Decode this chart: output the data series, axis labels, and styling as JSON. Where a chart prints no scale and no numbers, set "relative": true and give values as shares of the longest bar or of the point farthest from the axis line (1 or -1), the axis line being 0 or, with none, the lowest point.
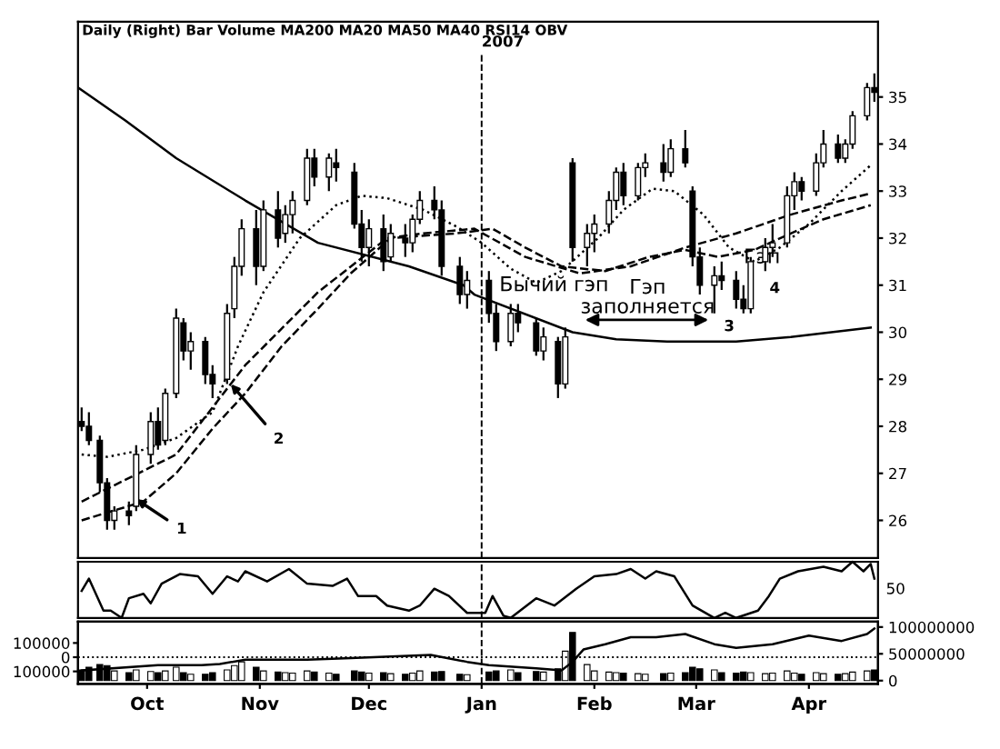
{
  "chart_data": [
    {
      "type": "candlestick",
      "title": "Daily (Right) Bar Volume MA200 MA20 MA50 MA40 RSI14 OBV",
      "x": [
        "2006-09-13",
        "2006-09-15",
        "2006-09-18",
        "2006-09-20",
        "2006-09-22",
        "2006-09-26",
        "2006-09-28",
        "2006-10-02",
        "2006-10-04",
        "2006-10-06",
        "2006-10-09",
        "2006-10-11",
        "2006-10-13",
        "2006-10-17",
        "2006-10-19",
        "2006-10-23",
        "2006-10-25",
        "2006-10-27",
        "2006-10-31",
        "2006-11-02",
        "2006-11-06",
        "2006-11-08",
        "2006-11-10",
        "2006-11-14",
        "2006-11-16",
        "2006-11-20",
        "2006-11-22",
        "2006-11-27",
        "2006-11-29",
        "2006-12-01",
        "2006-12-05",
        "2006-12-07",
        "2006-12-11",
        "2006-12-13",
        "2006-12-15",
        "2006-12-19",
        "2006-12-21",
        "2006-12-26",
        "2006-12-28",
        "2007-01-03",
        "2007-01-05",
        "2007-01-09",
        "2007-01-11",
        "2007-01-16",
        "2007-01-18",
        "2007-01-22",
        "2007-01-24",
        "2007-01-26",
        "2007-01-30",
        "2007-02-01",
        "2007-02-05",
        "2007-02-07",
        "2007-02-09",
        "2007-02-13",
        "2007-02-15",
        "2007-02-20",
        "2007-02-22",
        "2007-02-26",
        "2007-02-28",
        "2007-03-02",
        "2007-03-06",
        "2007-03-08",
        "2007-03-12",
        "2007-03-14",
        "2007-03-16",
        "2007-03-20",
        "2007-03-22",
        "2007-03-26",
        "2007-03-28",
        "2007-03-30",
        "2007-04-03",
        "2007-04-05",
        "2007-04-09",
        "2007-04-11",
        "2007-04-13",
        "2007-04-17",
        "2007-04-19"
      ],
      "ohlc": [
        [
          28.1,
          28.4,
          27.9,
          28.0
        ],
        [
          28.0,
          28.3,
          27.6,
          27.7
        ],
        [
          27.7,
          27.8,
          26.6,
          26.8
        ],
        [
          26.8,
          26.9,
          25.8,
          26.0
        ],
        [
          26.0,
          26.3,
          25.8,
          26.2
        ],
        [
          26.2,
          26.4,
          25.9,
          26.1
        ],
        [
          26.3,
          27.6,
          26.2,
          27.4
        ],
        [
          27.4,
          28.3,
          27.2,
          28.1
        ],
        [
          28.1,
          28.4,
          27.5,
          27.6
        ],
        [
          27.7,
          28.8,
          27.6,
          28.7
        ],
        [
          28.7,
          30.5,
          28.6,
          30.3
        ],
        [
          30.2,
          30.3,
          29.4,
          29.6
        ],
        [
          29.6,
          30.0,
          29.2,
          29.8
        ],
        [
          29.8,
          29.9,
          28.9,
          29.1
        ],
        [
          29.1,
          29.3,
          28.6,
          28.9
        ],
        [
          29.0,
          30.6,
          28.9,
          30.4
        ],
        [
          30.5,
          31.6,
          30.3,
          31.4
        ],
        [
          31.4,
          32.4,
          31.2,
          32.2
        ],
        [
          32.2,
          32.6,
          31.0,
          31.4
        ],
        [
          31.4,
          32.8,
          31.3,
          32.6
        ],
        [
          32.6,
          33.0,
          31.8,
          32.0
        ],
        [
          32.1,
          32.7,
          31.9,
          32.5
        ],
        [
          32.5,
          33.0,
          32.1,
          32.8
        ],
        [
          32.8,
          33.9,
          32.7,
          33.7
        ],
        [
          33.7,
          33.9,
          33.1,
          33.3
        ],
        [
          33.3,
          33.8,
          33.0,
          33.7
        ],
        [
          33.6,
          33.9,
          33.2,
          33.5
        ],
        [
          33.4,
          33.6,
          32.2,
          32.3
        ],
        [
          32.3,
          32.6,
          31.5,
          31.8
        ],
        [
          31.8,
          32.4,
          31.4,
          32.2
        ],
        [
          32.2,
          32.5,
          31.3,
          31.5
        ],
        [
          31.6,
          32.3,
          31.5,
          32.1
        ],
        [
          32.0,
          32.3,
          31.6,
          31.9
        ],
        [
          31.9,
          32.5,
          31.7,
          32.4
        ],
        [
          32.4,
          33.0,
          32.3,
          32.8
        ],
        [
          32.8,
          33.1,
          32.4,
          32.6
        ],
        [
          32.6,
          32.8,
          31.2,
          31.4
        ],
        [
          31.4,
          31.6,
          30.6,
          30.8
        ],
        [
          30.8,
          31.3,
          30.5,
          31.1
        ],
        [
          31.1,
          31.3,
          30.2,
          30.4
        ],
        [
          30.4,
          30.6,
          29.6,
          29.8
        ],
        [
          29.8,
          30.6,
          29.7,
          30.4
        ],
        [
          30.4,
          30.6,
          30.0,
          30.2
        ],
        [
          30.2,
          30.3,
          29.5,
          29.6
        ],
        [
          29.6,
          30.1,
          29.4,
          29.9
        ],
        [
          29.8,
          29.9,
          28.6,
          28.9
        ],
        [
          28.9,
          30.1,
          28.8,
          29.9
        ],
        [
          33.6,
          33.7,
          31.5,
          31.8
        ],
        [
          31.8,
          32.3,
          31.4,
          32.1
        ],
        [
          32.1,
          32.5,
          31.7,
          32.3
        ],
        [
          32.3,
          33.0,
          32.1,
          32.8
        ],
        [
          32.8,
          33.5,
          32.6,
          33.4
        ],
        [
          33.4,
          33.6,
          32.7,
          32.9
        ],
        [
          32.9,
          33.6,
          32.8,
          33.5
        ],
        [
          33.5,
          33.8,
          33.3,
          33.6
        ],
        [
          33.6,
          34.0,
          33.2,
          33.4
        ],
        [
          33.4,
          34.1,
          33.3,
          33.9
        ],
        [
          33.9,
          34.3,
          33.5,
          33.6
        ],
        [
          33.0,
          33.1,
          31.4,
          31.6
        ],
        [
          31.6,
          31.8,
          30.8,
          31.0
        ],
        [
          31.0,
          31.4,
          30.4,
          31.2
        ],
        [
          31.2,
          31.5,
          30.9,
          31.1
        ],
        [
          31.1,
          31.3,
          30.5,
          30.7
        ],
        [
          30.7,
          31.0,
          30.4,
          30.5
        ],
        [
          30.5,
          31.6,
          30.4,
          31.5
        ],
        [
          31.5,
          32.0,
          31.3,
          31.8
        ],
        [
          31.8,
          32.3,
          31.6,
          31.9
        ],
        [
          31.9,
          33.1,
          31.8,
          32.9
        ],
        [
          32.9,
          33.4,
          32.6,
          33.2
        ],
        [
          33.2,
          33.3,
          32.8,
          33.0
        ],
        [
          33.0,
          33.8,
          32.9,
          33.6
        ],
        [
          33.6,
          34.3,
          33.5,
          34.0
        ],
        [
          34.0,
          34.2,
          33.6,
          33.7
        ],
        [
          33.7,
          34.1,
          33.6,
          34.0
        ],
        [
          34.0,
          34.7,
          33.9,
          34.6
        ],
        [
          34.6,
          35.3,
          34.5,
          35.2
        ],
        [
          35.2,
          35.5,
          34.9,
          35.1
        ]
      ],
      "series": [
        {
          "type": "line",
          "color": "#000000",
          "line_style": "solid",
          "x": [
            "2006-09-12",
            "2006-09-25",
            "2006-10-09",
            "2006-10-28",
            "2006-11-17",
            "2006-12-12",
            "2006-12-27",
            "2006-12-30",
            "2007-01-26",
            "2007-02-07",
            "2007-02-21",
            "2007-03-12",
            "2007-03-27",
            "2007-04-18"
          ],
          "values": [
            35.2,
            34.5,
            33.7,
            32.8,
            31.9,
            31.4,
            31.0,
            30.8,
            30.0,
            29.85,
            29.8,
            29.8,
            29.9,
            30.1
          ]
        },
        {
          "type": "line",
          "color": "#000000",
          "line_style": "dotted",
          "x": [
            "2006-09-13",
            "2006-09-20",
            "2006-09-30",
            "2006-10-09",
            "2006-10-19",
            "2006-10-26",
            "2006-11-02",
            "2006-11-12",
            "2006-11-22",
            "2006-11-29",
            "2006-12-06",
            "2006-12-16",
            "2006-12-25",
            "2007-01-01",
            "2007-01-09",
            "2007-01-16",
            "2007-01-23",
            "2007-02-02",
            "2007-02-09",
            "2007-02-17",
            "2007-02-23",
            "2007-03-03",
            "2007-03-10",
            "2007-03-17",
            "2007-03-24",
            "2007-04-01",
            "2007-04-10",
            "2007-04-18"
          ],
          "values": [
            27.4,
            27.35,
            27.5,
            27.75,
            28.3,
            29.7,
            30.85,
            32.0,
            32.7,
            32.9,
            32.85,
            32.6,
            32.25,
            31.9,
            31.35,
            31.05,
            31.3,
            32.0,
            32.6,
            33.05,
            33.0,
            32.5,
            31.8,
            31.5,
            31.8,
            32.3,
            33.0,
            33.55
          ]
        },
        {
          "type": "line",
          "color": "#000000",
          "line_style": "dashed",
          "x": [
            "2006-09-13",
            "2006-09-30",
            "2006-10-09",
            "2006-10-19",
            "2006-10-28",
            "2006-11-07",
            "2006-11-17",
            "2006-11-26",
            "2006-12-07",
            "2006-12-25",
            "2007-01-04",
            "2007-01-13",
            "2007-01-23",
            "2007-02-04",
            "2007-02-16",
            "2007-02-26",
            "2007-03-07",
            "2007-03-17",
            "2007-03-27",
            "2007-04-05",
            "2007-04-18"
          ],
          "values": [
            26.0,
            26.4,
            27.0,
            27.95,
            28.7,
            29.7,
            30.5,
            31.25,
            32.0,
            32.1,
            32.2,
            31.8,
            31.4,
            31.3,
            31.6,
            31.75,
            31.6,
            31.75,
            32.1,
            32.4,
            32.7
          ]
        },
        {
          "type": "line",
          "color": "#000000",
          "line_style": "dashed",
          "x": [
            "2006-09-13",
            "2006-10-09",
            "2006-10-28",
            "2006-11-17",
            "2006-12-06",
            "2006-12-16",
            "2006-12-30",
            "2007-01-13",
            "2007-01-28",
            "2007-02-11",
            "2007-02-26",
            "2007-03-12",
            "2007-03-27",
            "2007-04-10",
            "2007-04-18"
          ],
          "values": [
            26.4,
            27.4,
            29.3,
            30.85,
            32.0,
            32.1,
            32.2,
            31.6,
            31.25,
            31.4,
            31.8,
            32.1,
            32.5,
            32.8,
            32.95
          ]
        }
      ],
      "xlim": [
        "2006-09-12",
        "2007-04-20"
      ],
      "ylim": [
        25.2,
        36.6
      ],
      "yticks": [
        26,
        27,
        28,
        29,
        30,
        31,
        32,
        33,
        34,
        35
      ],
      "tick_labels": "y",
      "ref_lines": [
        {
          "axis": "x",
          "value": "2007-01-01",
          "label": "2007",
          "line_style": "dashed"
        }
      ],
      "annotations": [
        {
          "text": "1",
          "x": "2006-09-28",
          "y": 26.45
        },
        {
          "text": "2",
          "x": "2006-10-24",
          "y": 28.9
        },
        "Бычий гэп",
        "Гэп\nзаполняется",
        "Гэп",
        "3",
        "4"
      ]
    },
    {
      "type": "line",
      "relative": true,
      "tick_labels": false,
      "series": [
        {
          "color": "#000000",
          "x": [
            "2006-09-13",
            "2006-09-15",
            "2006-09-19",
            "2006-09-21",
            "2006-09-24",
            "2006-09-26",
            "2006-09-30",
            "2006-10-02",
            "2006-10-05",
            "2006-10-10",
            "2006-10-15",
            "2006-10-19",
            "2006-10-23",
            "2006-10-26",
            "2006-10-28",
            "2006-11-03",
            "2006-11-09",
            "2006-11-14",
            "2006-11-21",
            "2006-11-25",
            "2006-11-28",
            "2006-12-03",
            "2006-12-06",
            "2006-12-12",
            "2006-12-15",
            "2006-12-19",
            "2006-12-23",
            "2006-12-28",
            "2007-01-02",
            "2007-01-04",
            "2007-01-07",
            "2007-01-09",
            "2007-01-16",
            "2007-01-21",
            "2007-01-27",
            "2007-02-01",
            "2007-02-07",
            "2007-02-11",
            "2007-02-15",
            "2007-02-18",
            "2007-02-23",
            "2007-02-28",
            "2007-03-06",
            "2007-03-09",
            "2007-03-12",
            "2007-03-18",
            "2007-03-21",
            "2007-03-24",
            "2007-03-29",
            "2007-04-05",
            "2007-04-10",
            "2007-04-13",
            "2007-04-16",
            "2007-04-18",
            "2007-04-19"
          ],
          "values": [
            0.48,
            0.7,
            0.13,
            0.13,
            0.0,
            0.35,
            0.43,
            0.26,
            0.61,
            0.78,
            0.74,
            0.43,
            0.74,
            0.65,
            0.83,
            0.65,
            0.87,
            0.61,
            0.57,
            0.7,
            0.39,
            0.39,
            0.22,
            0.13,
            0.22,
            0.52,
            0.39,
            0.09,
            0.09,
            0.39,
            0.04,
            0.0,
            0.35,
            0.22,
            0.52,
            0.74,
            0.78,
            0.87,
            0.7,
            0.83,
            0.74,
            0.22,
            0.0,
            0.09,
            0.0,
            0.13,
            0.39,
            0.7,
            0.83,
            0.91,
            0.83,
            1.0,
            0.83,
            0.96,
            0.7
          ]
        }
      ],
      "xlim": [
        "2006-09-12",
        "2007-04-20"
      ],
      "ref_lines": [
        {
          "axis": "x",
          "value": "2007-01-01",
          "line_style": "dashed"
        }
      ],
      "annotations": [
        "50"
      ]
    },
    {
      "type": "bar",
      "series": [
        {
          "type": "bar",
          "x": [
            "2006-09-13",
            "2006-09-15",
            "2006-09-18",
            "2006-09-20",
            "2006-09-22",
            "2006-09-26",
            "2006-09-28",
            "2006-10-02",
            "2006-10-04",
            "2006-10-06",
            "2006-10-09",
            "2006-10-11",
            "2006-10-13",
            "2006-10-17",
            "2006-10-19",
            "2006-10-23",
            "2006-10-25",
            "2006-10-27",
            "2006-10-31",
            "2006-11-02",
            "2006-11-06",
            "2006-11-08",
            "2006-11-10",
            "2006-11-14",
            "2006-11-16",
            "2006-11-20",
            "2006-11-22",
            "2006-11-27",
            "2006-11-29",
            "2006-12-01",
            "2006-12-05",
            "2006-12-07",
            "2006-12-11",
            "2006-12-13",
            "2006-12-15",
            "2006-12-19",
            "2006-12-21",
            "2006-12-26",
            "2006-12-28",
            "2007-01-03",
            "2007-01-05",
            "2007-01-09",
            "2007-01-11",
            "2007-01-16",
            "2007-01-18",
            "2007-01-22",
            "2007-01-24",
            "2007-01-26",
            "2007-01-30",
            "2007-02-01",
            "2007-02-05",
            "2007-02-07",
            "2007-02-09",
            "2007-02-13",
            "2007-02-15",
            "2007-02-20",
            "2007-02-22",
            "2007-02-26",
            "2007-02-28",
            "2007-03-02",
            "2007-03-06",
            "2007-03-08",
            "2007-03-12",
            "2007-03-14",
            "2007-03-16",
            "2007-03-20",
            "2007-03-22",
            "2007-03-26",
            "2007-03-28",
            "2007-03-30",
            "2007-04-03",
            "2007-04-05",
            "2007-04-09",
            "2007-04-11",
            "2007-04-13",
            "2007-04-17",
            "2007-04-19"
          ],
          "values": [
            20000000,
            25000000,
            30000000,
            28000000,
            18000000,
            15000000,
            20000000,
            17000000,
            15000000,
            18000000,
            25000000,
            15000000,
            12000000,
            12000000,
            15000000,
            20000000,
            28000000,
            35000000,
            25000000,
            18000000,
            16000000,
            15000000,
            14000000,
            18000000,
            16000000,
            14000000,
            12000000,
            18000000,
            16000000,
            14000000,
            15000000,
            13000000,
            12000000,
            14000000,
            18000000,
            16000000,
            17000000,
            12000000,
            11000000,
            16000000,
            18000000,
            20000000,
            15000000,
            17000000,
            16000000,
            22000000,
            55000000,
            90000000,
            30000000,
            18000000,
            16000000,
            15000000,
            14000000,
            13000000,
            12000000,
            13000000,
            14000000,
            15000000,
            25000000,
            22000000,
            20000000,
            15000000,
            14000000,
            16000000,
            15000000,
            13000000,
            14000000,
            18000000,
            14000000,
            12000000,
            15000000,
            13000000,
            12000000,
            13000000,
            16000000,
            18000000,
            20000000
          ],
          "colors": [
            "#000000",
            "#000000",
            "#000000",
            "#000000",
            "#ffffff",
            "#000000",
            "#ffffff",
            "#ffffff",
            "#000000",
            "#ffffff",
            "#ffffff",
            "#000000",
            "#ffffff",
            "#000000",
            "#000000",
            "#ffffff",
            "#ffffff",
            "#ffffff",
            "#000000",
            "#ffffff",
            "#000000",
            "#ffffff",
            "#ffffff",
            "#ffffff",
            "#000000",
            "#ffffff",
            "#000000",
            "#000000",
            "#000000",
            "#ffffff",
            "#000000",
            "#ffffff",
            "#000000",
            "#ffffff",
            "#ffffff",
            "#000000",
            "#000000",
            "#000000",
            "#ffffff",
            "#000000",
            "#000000",
            "#ffffff",
            "#000000",
            "#000000",
            "#ffffff",
            "#000000",
            "#ffffff",
            "#000000",
            "#ffffff",
            "#ffffff",
            "#ffffff",
            "#ffffff",
            "#000000",
            "#ffffff",
            "#ffffff",
            "#000000",
            "#ffffff",
            "#000000",
            "#000000",
            "#000000",
            "#ffffff",
            "#000000",
            "#000000",
            "#000000",
            "#ffffff",
            "#ffffff",
            "#ffffff",
            "#ffffff",
            "#ffffff",
            "#000000",
            "#ffffff",
            "#ffffff",
            "#000000",
            "#ffffff",
            "#ffffff",
            "#ffffff",
            "#000000"
          ]
        },
        {
          "type": "line",
          "color": "#000000",
          "x": [
            "2006-09-13",
            "2006-10-04",
            "2006-10-16",
            "2006-10-21",
            "2006-10-28",
            "2006-11-14",
            "2006-11-26",
            "2006-12-18",
            "2006-12-28",
            "2007-01-03",
            "2007-01-16",
            "2007-01-23",
            "2007-01-26",
            "2007-01-29",
            "2007-02-04",
            "2007-02-11",
            "2007-02-18",
            "2007-02-26",
            "2007-03-06",
            "2007-03-12",
            "2007-03-22",
            "2007-04-01",
            "2007-04-10",
            "2007-04-17",
            "2007-04-19"
          ],
          "values": [
            19000000,
            29000000,
            29000000,
            31000000,
            39000000,
            39000000,
            42000000,
            48000000,
            35000000,
            29000000,
            23000000,
            19000000,
            35000000,
            58000000,
            68000000,
            81000000,
            81000000,
            87000000,
            68000000,
            61000000,
            68000000,
            84000000,
            74000000,
            87000000,
            97000000
          ]
        }
      ],
      "xlim": [
        "2006-09-12",
        "2007-04-20"
      ],
      "xticks": [
        {
          "value": "2006-10-01",
          "label": "Oct"
        },
        {
          "value": "2006-11-01",
          "label": "Nov"
        },
        {
          "value": "2006-12-01",
          "label": "Dec"
        },
        {
          "value": "2007-01-01",
          "label": "Jan"
        },
        {
          "value": "2007-02-01",
          "label": "Feb"
        },
        {
          "value": "2007-03-01",
          "label": "Mar"
        },
        {
          "value": "2007-04-01",
          "label": "Apr"
        }
      ],
      "ylim": [
        -6000000,
        110000000
      ],
      "yticks": [
        0,
        50000000,
        100000000
      ],
      "y2lim": [
        -187500,
        250000
      ],
      "y2ticks": [
        {
          "value": 100000,
          "label": "100000"
        },
        0,
        {
          "value": -100000,
          "label": "100000"
        }
      ],
      "ref_lines": [
        {
          "axis": "y2",
          "value": 0,
          "line_style": "dotted"
        },
        {
          "axis": "x",
          "value": "2007-01-01",
          "line_style": "dashed"
        }
      ]
    }
  ]
}
